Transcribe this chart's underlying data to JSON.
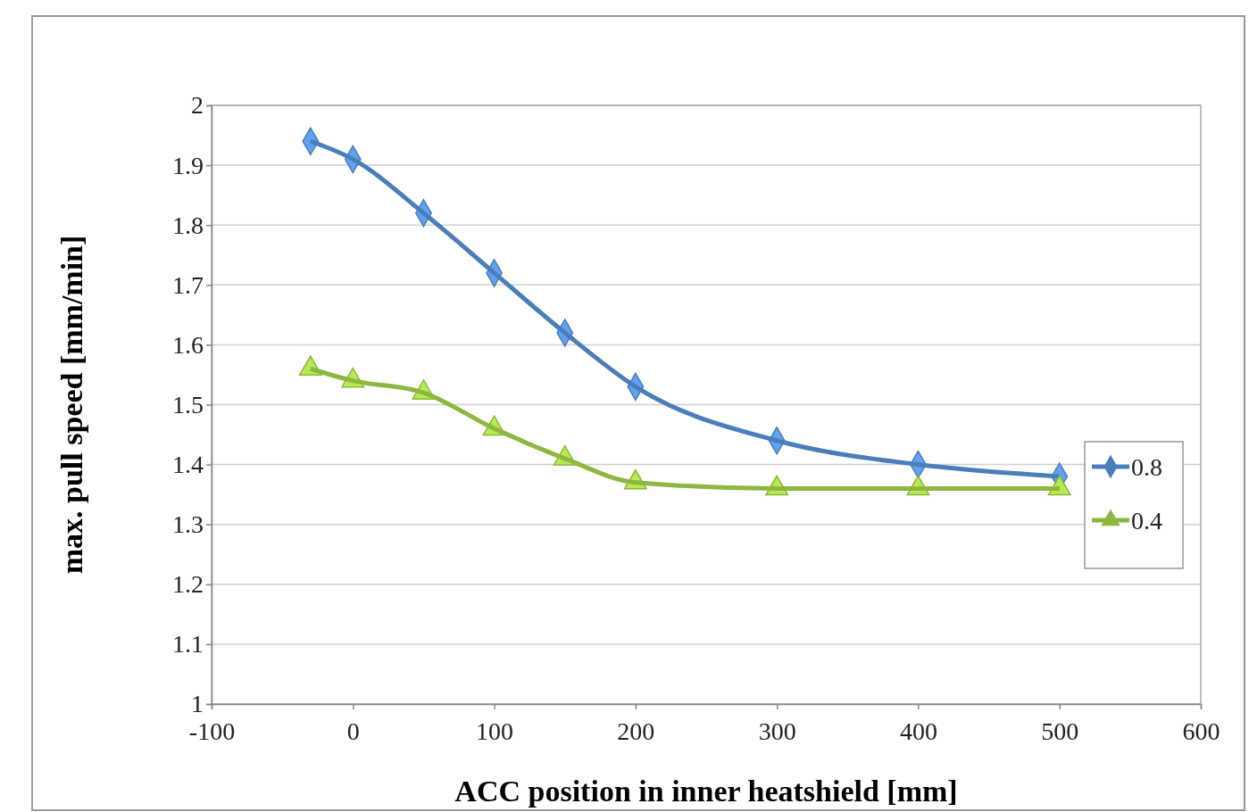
{
  "chart_data": {
    "type": "line",
    "xlabel": "ACC position in inner heatshield [mm]",
    "ylabel": "max. pull speed [mm/min]",
    "xlim": [
      -100,
      600
    ],
    "xticks": [
      -100,
      0,
      100,
      200,
      300,
      400,
      500,
      600
    ],
    "ylim": [
      1,
      2
    ],
    "yticks": [
      1,
      1.1,
      1.2,
      1.3,
      1.4,
      1.5,
      1.6,
      1.7,
      1.8,
      1.9,
      2
    ],
    "grid": "y",
    "legend": "right",
    "series": [
      {
        "name": "0.8",
        "color": "#4a7ebb",
        "marker": "diamond",
        "x": [
          -30,
          0,
          50,
          100,
          150,
          200,
          300,
          400,
          500
        ],
        "values": [
          1.94,
          1.91,
          1.82,
          1.72,
          1.62,
          1.53,
          1.44,
          1.4,
          1.38
        ]
      },
      {
        "name": "0.4",
        "color": "#8db73f",
        "marker": "triangle",
        "x": [
          -30,
          0,
          50,
          100,
          150,
          200,
          300,
          400,
          500
        ],
        "values": [
          1.56,
          1.54,
          1.52,
          1.46,
          1.41,
          1.37,
          1.36,
          1.36,
          1.36
        ]
      }
    ]
  }
}
